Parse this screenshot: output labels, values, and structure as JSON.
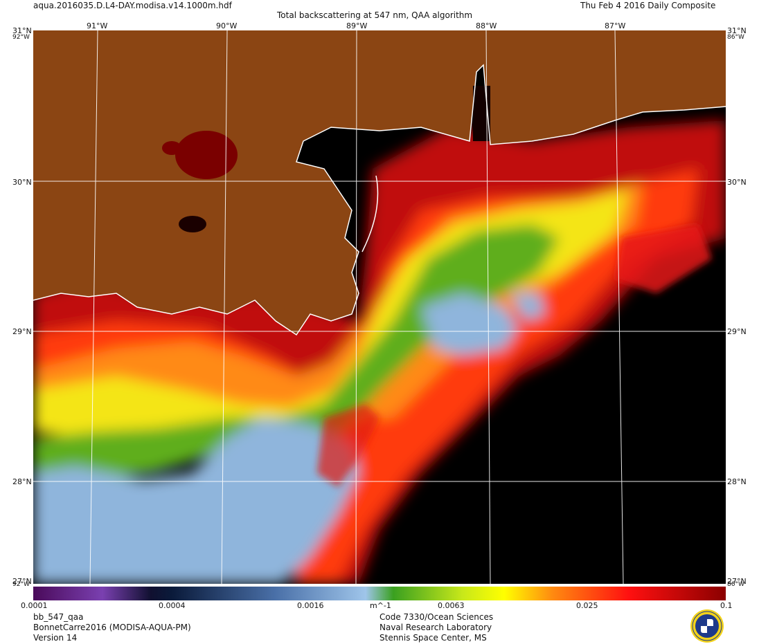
{
  "header": {
    "filename": "aqua.2016035.D.L4-DAY.modisa.v14.1000m.hdf",
    "subtitle": "Total backscattering at 547 nm, QAA algorithm",
    "date": "Thu Feb  4 2016 Daily Composite"
  },
  "map": {
    "lon_labels": [
      "91°W",
      "90°W",
      "89°W",
      "88°W",
      "87°W"
    ],
    "lat_labels": [
      "30°N",
      "29°N",
      "28°N"
    ],
    "corner_top_left": "31°N",
    "corner_top_right": "31°N",
    "corner_bottom_left": "27°N",
    "corner_bottom_right": "27°N",
    "edge_left_top": "92°W",
    "edge_right_top": "86°W",
    "edge_left_bottom": "92°W",
    "edge_right_bottom": "86°W",
    "colors": {
      "land": "#8B4513",
      "no_data": "#000000",
      "coastline": "#ffffff",
      "graticule": "#ffffff"
    }
  },
  "colorbar": {
    "tick_labels": [
      "0.0001",
      "0.0004",
      "0.0016",
      "0.0063",
      "0.025",
      "0.1"
    ],
    "unit": "m^-1",
    "scale": "log",
    "range": [
      0.0001,
      0.1
    ]
  },
  "footer": {
    "product": "bb_547_qaa",
    "dataset": "BonnetCarre2016 (MODISA-AQUA-PM)",
    "version": "Version 14",
    "org_line1": "Code 7330/Ocean Sciences",
    "org_line2": "Naval Research Laboratory",
    "org_line3": "Stennis Space Center, MS"
  }
}
